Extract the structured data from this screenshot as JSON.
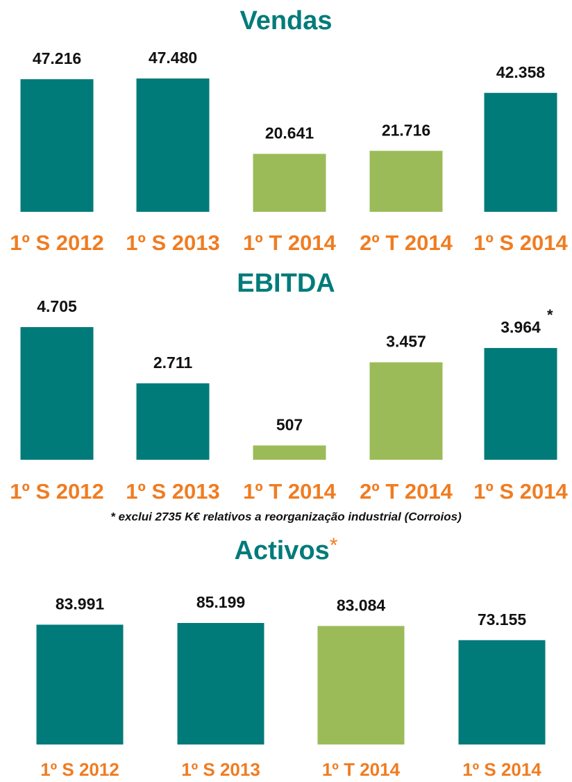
{
  "chart_data": [
    {
      "type": "bar",
      "title": "Vendas",
      "categories": [
        "1º S 2012",
        "1º S 2013",
        "1º T 2014",
        "2º T 2014",
        "1º S 2014"
      ],
      "values": [
        47216,
        47480,
        20641,
        21716,
        42358
      ],
      "value_labels": [
        "47.216",
        "47.480",
        "20.641",
        "21.716",
        "42.358"
      ],
      "colors": [
        "#007b7a",
        "#007b7a",
        "#9bbb59",
        "#9bbb59",
        "#007b7a"
      ]
    },
    {
      "type": "bar",
      "title": "EBITDA",
      "categories": [
        "1º S 2012",
        "1º S 2013",
        "1º T 2014",
        "2º T 2014",
        "1º S 2014"
      ],
      "values": [
        4705,
        2711,
        507,
        3457,
        3964
      ],
      "value_labels": [
        "4.705",
        "2.711",
        "507",
        "3.457",
        "3.964"
      ],
      "colors": [
        "#007b7a",
        "#007b7a",
        "#9bbb59",
        "#9bbb59",
        "#007b7a"
      ],
      "annotation": "*",
      "footnote": "* exclui 2735 K€ relativos a reorganização industrial (Corroios)"
    },
    {
      "type": "bar",
      "title": "Activos",
      "title_marker": "*",
      "categories": [
        "1º S 2012",
        "1º S 2013",
        "1º T 2014",
        "1º S 2014"
      ],
      "values": [
        83991,
        85199,
        83084,
        73155
      ],
      "value_labels": [
        "83.991",
        "85.199",
        "83.084",
        "73.155"
      ],
      "colors": [
        "#007b7a",
        "#007b7a",
        "#9bbb59",
        "#007b7a"
      ]
    }
  ]
}
